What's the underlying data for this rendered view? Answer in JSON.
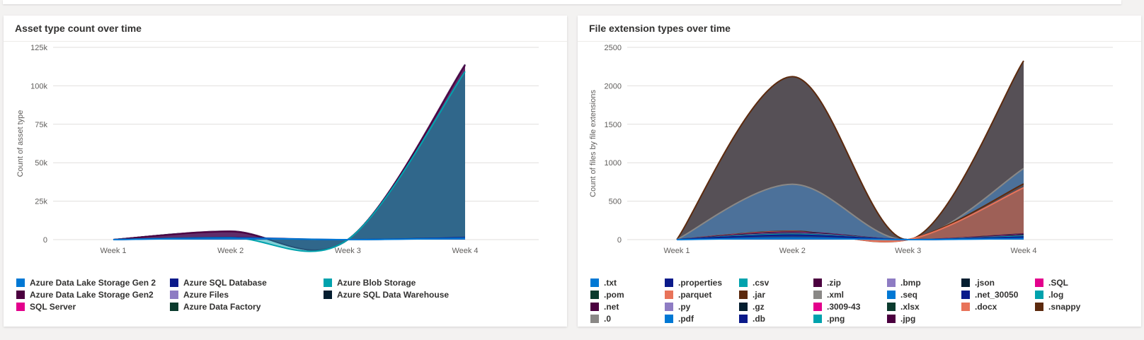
{
  "cards": {
    "left": {
      "title": "Asset type count over time"
    },
    "right": {
      "title": "File extension types over time"
    }
  },
  "chart_data": [
    {
      "type": "area",
      "title": "Asset type count over time",
      "ylabel": "Count of asset type",
      "xlabel": "",
      "categories": [
        "Week 1",
        "Week 2",
        "Week 3",
        "Week 4"
      ],
      "ylim": [
        0,
        125000
      ],
      "yticks": [
        0,
        25000,
        50000,
        75000,
        100000,
        125000
      ],
      "ytick_labels": [
        "0",
        "25k",
        "50k",
        "75k",
        "100k",
        "125k"
      ],
      "grid": true,
      "legend_position": "bottom",
      "series": [
        {
          "name": "Azure Data Lake Storage Gen 2",
          "color": "#0078d4",
          "values": [
            0,
            900,
            0,
            900
          ]
        },
        {
          "name": "Azure SQL Database",
          "color": "#0b1a8a",
          "values": [
            0,
            300,
            0,
            400
          ]
        },
        {
          "name": "Azure Blob Storage",
          "color": "#00a2ad",
          "values": [
            0,
            200,
            0,
            108000
          ]
        },
        {
          "name": "Azure Data Lake Storage Gen2",
          "color": "#4b003f",
          "values": [
            0,
            3800,
            0,
            4000
          ]
        },
        {
          "name": "Azure Files",
          "color": "#8e7cc3",
          "values": [
            0,
            100,
            0,
            200
          ]
        },
        {
          "name": "Azure SQL Data Warehouse",
          "color": "#041e30",
          "values": [
            0,
            100,
            0,
            200
          ]
        },
        {
          "name": "SQL Server",
          "color": "#e3008c",
          "values": [
            0,
            50,
            0,
            100
          ]
        },
        {
          "name": "Azure Data Factory",
          "color": "#0b3b2e",
          "values": [
            0,
            50,
            0,
            100
          ]
        }
      ]
    },
    {
      "type": "area",
      "title": "File extension types over time",
      "ylabel": "Count of files by file extensions",
      "xlabel": "",
      "categories": [
        "Week 1",
        "Week 2",
        "Week 3",
        "Week 4"
      ],
      "ylim": [
        0,
        2500
      ],
      "yticks": [
        0,
        500,
        1000,
        1500,
        2000,
        2500
      ],
      "ytick_labels": [
        "0",
        "500",
        "1000",
        "1500",
        "2000",
        "2500"
      ],
      "grid": true,
      "legend_position": "bottom",
      "series": [
        {
          "name": ".txt",
          "color": "#0078d4",
          "values": [
            0,
            20,
            0,
            15
          ]
        },
        {
          "name": ".properties",
          "color": "#0b1a8a",
          "values": [
            0,
            40,
            0,
            20
          ]
        },
        {
          "name": ".csv",
          "color": "#00a2ad",
          "values": [
            0,
            10,
            0,
            10
          ]
        },
        {
          "name": ".zip",
          "color": "#4b003f",
          "values": [
            0,
            5,
            0,
            5
          ]
        },
        {
          "name": ".bmp",
          "color": "#8e7cc3",
          "values": [
            0,
            5,
            0,
            5
          ]
        },
        {
          "name": ".json",
          "color": "#041e30",
          "values": [
            0,
            10,
            0,
            10
          ]
        },
        {
          "name": ".SQL",
          "color": "#e3008c",
          "values": [
            0,
            5,
            0,
            5
          ]
        },
        {
          "name": ".pom",
          "color": "#0b3b2e",
          "values": [
            0,
            5,
            0,
            5
          ]
        },
        {
          "name": ".parquet",
          "color": "#e8735a",
          "values": [
            0,
            5,
            0,
            600
          ]
        },
        {
          "name": ".jar",
          "color": "#5c2a0e",
          "values": [
            0,
            5,
            0,
            50
          ]
        },
        {
          "name": ".xml",
          "color": "#8a8886",
          "values": [
            0,
            610,
            0,
            200
          ]
        },
        {
          "name": ".seq",
          "color": "#0078d4",
          "values": [
            0,
            0,
            0,
            0
          ]
        },
        {
          "name": ".net_30050",
          "color": "#0b1a8a",
          "values": [
            0,
            0,
            0,
            0
          ]
        },
        {
          "name": ".log",
          "color": "#00a2ad",
          "values": [
            0,
            0,
            0,
            0
          ]
        },
        {
          "name": ".net",
          "color": "#4b003f",
          "values": [
            0,
            0,
            0,
            0
          ]
        },
        {
          "name": ".py",
          "color": "#8e7cc3",
          "values": [
            0,
            0,
            0,
            0
          ]
        },
        {
          "name": ".gz",
          "color": "#041e30",
          "values": [
            0,
            0,
            0,
            0
          ]
        },
        {
          "name": ".3009-43",
          "color": "#e3008c",
          "values": [
            0,
            0,
            0,
            0
          ]
        },
        {
          "name": ".xlsx",
          "color": "#0b3b2e",
          "values": [
            0,
            0,
            0,
            0
          ]
        },
        {
          "name": ".docx",
          "color": "#e8735a",
          "values": [
            0,
            0,
            0,
            0
          ]
        },
        {
          "name": ".snappy",
          "color": "#5c2a0e",
          "values": [
            0,
            1400,
            0,
            1400
          ]
        },
        {
          "name": ".0",
          "color": "#8a8886",
          "values": [
            0,
            0,
            0,
            0
          ]
        },
        {
          "name": ".pdf",
          "color": "#0078d4",
          "values": [
            0,
            0,
            0,
            0
          ]
        },
        {
          "name": ".db",
          "color": "#0b1a8a",
          "values": [
            0,
            0,
            0,
            0
          ]
        },
        {
          "name": ".png",
          "color": "#00a2ad",
          "values": [
            0,
            0,
            0,
            0
          ]
        },
        {
          "name": ".jpg",
          "color": "#4b003f",
          "values": [
            0,
            0,
            0,
            0
          ]
        }
      ]
    }
  ]
}
